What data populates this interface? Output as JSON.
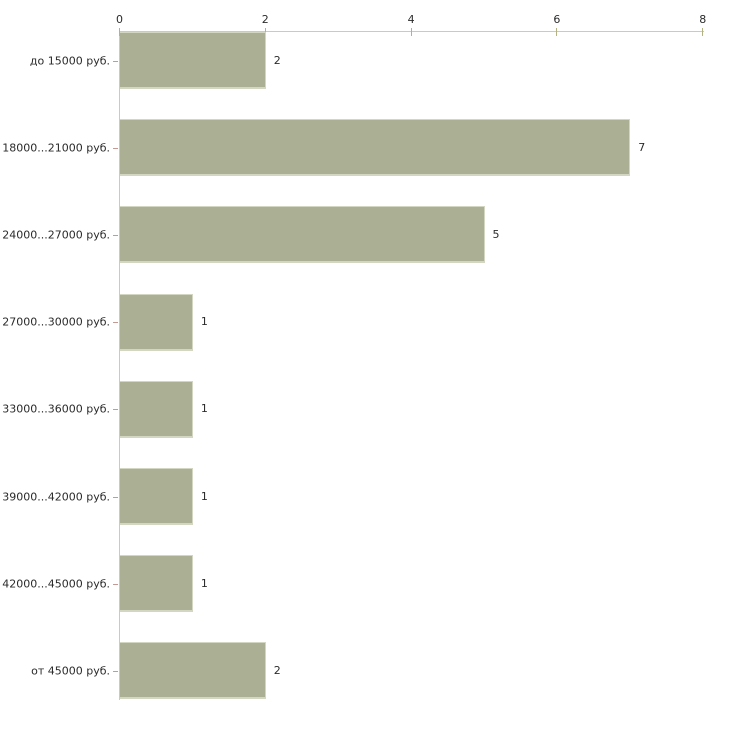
{
  "page": {
    "background": "#ffffff"
  },
  "chart_data": {
    "type": "bar",
    "orientation": "horizontal",
    "title": "",
    "xlabel": "",
    "ylabel": "",
    "categories": [
      "до 15000 руб.",
      "18000...21000 руб.",
      "24000...27000 руб.",
      "27000...30000 руб.",
      "33000...36000 руб.",
      "39000...42000 руб.",
      "42000...45000 руб.",
      "от 45000 руб."
    ],
    "values": [
      2,
      7,
      5,
      1,
      1,
      1,
      1,
      2
    ],
    "value_labels": [
      "2",
      "7",
      "5",
      "1",
      "1",
      "1",
      "1",
      "2"
    ],
    "x_ticks": [
      "0",
      "2",
      "4",
      "6",
      "8"
    ],
    "xlim": [
      0,
      8
    ],
    "grid": false,
    "legend": false,
    "axis_position": "top",
    "colors": {
      "bar_fill": "#abb095",
      "bar_edge": "#d3d7c1",
      "axis_line": "#c9c9c9",
      "x_tick_mark": "#b2b282",
      "category_tick_mark": "#c49a94",
      "text": "#2b2b2b",
      "background": "#ffffff"
    }
  }
}
